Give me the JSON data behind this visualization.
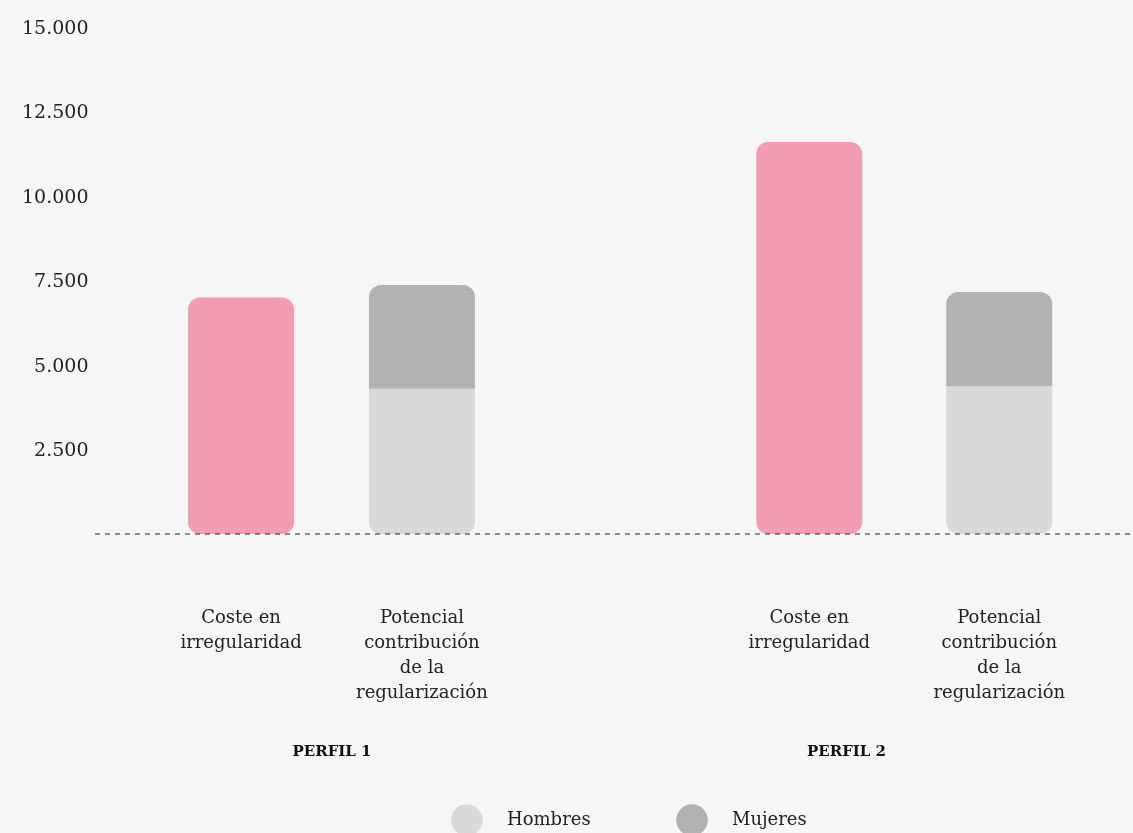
{
  "chart_data": [
    {
      "type": "bar",
      "stacked": true,
      "xlabel": "PERFIL 1",
      "categories": [
        "Coste en irregularidad",
        "Potencial contribución de la regularización"
      ],
      "series": [
        {
          "color": "#f29db0",
          "values": [
            7000,
            null
          ]
        },
        {
          "name": "Hombres",
          "color": "#d9d9d9",
          "values": [
            null,
            4300
          ]
        },
        {
          "name": "Mujeres",
          "color": "#b2b2b2",
          "values": [
            null,
            3070
          ]
        }
      ],
      "ylim": [
        0,
        15000
      ],
      "yticks": [
        {
          "value": 2500,
          "label": "2.500"
        },
        {
          "value": 5000,
          "label": "5.000"
        },
        {
          "value": 7500,
          "label": "7.500"
        },
        {
          "value": 10000,
          "label": "10.000"
        },
        {
          "value": 12500,
          "label": "12.500"
        },
        {
          "value": 15000,
          "label": "15.000"
        }
      ],
      "ref_lines": [
        {
          "axis": "y",
          "value": 0,
          "line_style": "dashed",
          "color": "#222222"
        }
      ],
      "grid": false,
      "legend": "bottom"
    },
    {
      "type": "bar",
      "stacked": true,
      "xlabel": "PERFIL 2",
      "categories": [
        "Coste en irregularidad",
        "Potencial contribución de la regularización"
      ],
      "series": [
        {
          "color": "#f29db0",
          "values": [
            11600,
            null
          ]
        },
        {
          "name": "Hombres",
          "color": "#d9d9d9",
          "values": [
            null,
            4370
          ]
        },
        {
          "name": "Mujeres",
          "color": "#b2b2b2",
          "values": [
            null,
            2790
          ]
        }
      ],
      "ylim": [
        0,
        15000
      ],
      "ref_lines": [
        {
          "axis": "y",
          "value": 0,
          "line_style": "dashed",
          "color": "#222222"
        }
      ],
      "grid": false,
      "legend": "bottom",
      "tick_labels": "x"
    }
  ]
}
